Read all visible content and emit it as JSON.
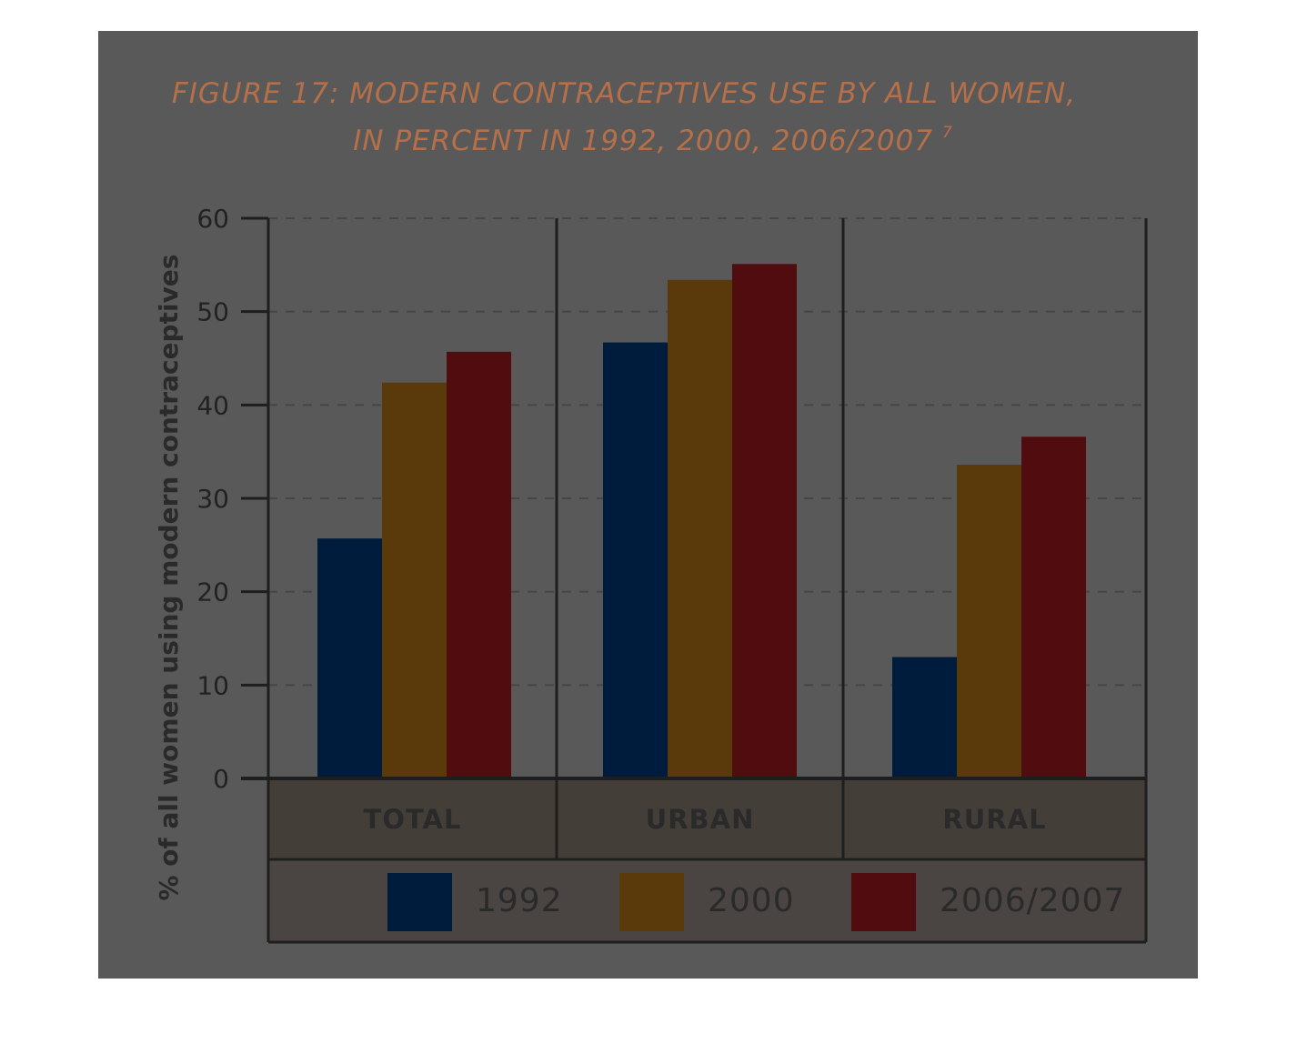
{
  "chart_data": {
    "type": "bar",
    "title_lines": [
      "FIGURE 17: MODERN CONTRACEPTIVES USE BY ALL WOMEN,",
      "IN PERCENT IN 1992, 2000, 2006/2007"
    ],
    "footnote_marker": "7",
    "ylabel": "% of all women using modern contraceptives",
    "xlabel": "",
    "ylim": [
      0,
      60
    ],
    "yticks": [
      "0",
      "10",
      "20",
      "30",
      "40",
      "50",
      "60"
    ],
    "categories": [
      "TOTAL",
      "URBAN",
      "RURAL"
    ],
    "series": [
      {
        "name": "1992",
        "values": [
          25.7,
          46.7,
          13.0
        ],
        "color": "#001c3c"
      },
      {
        "name": "2000",
        "values": [
          42.4,
          53.4,
          33.6
        ],
        "color": "#5a390b"
      },
      {
        "name": "2006/2007",
        "values": [
          45.7,
          55.1,
          36.6
        ],
        "color": "#510c10"
      }
    ],
    "grid": true,
    "legend_position": "bottom",
    "colors": {
      "background": "#595959",
      "category_band": "#443e39",
      "legend_band": "#4a4443",
      "title": "#b5704a",
      "axis": "#1e1e1e",
      "gridline": "#464646"
    }
  }
}
